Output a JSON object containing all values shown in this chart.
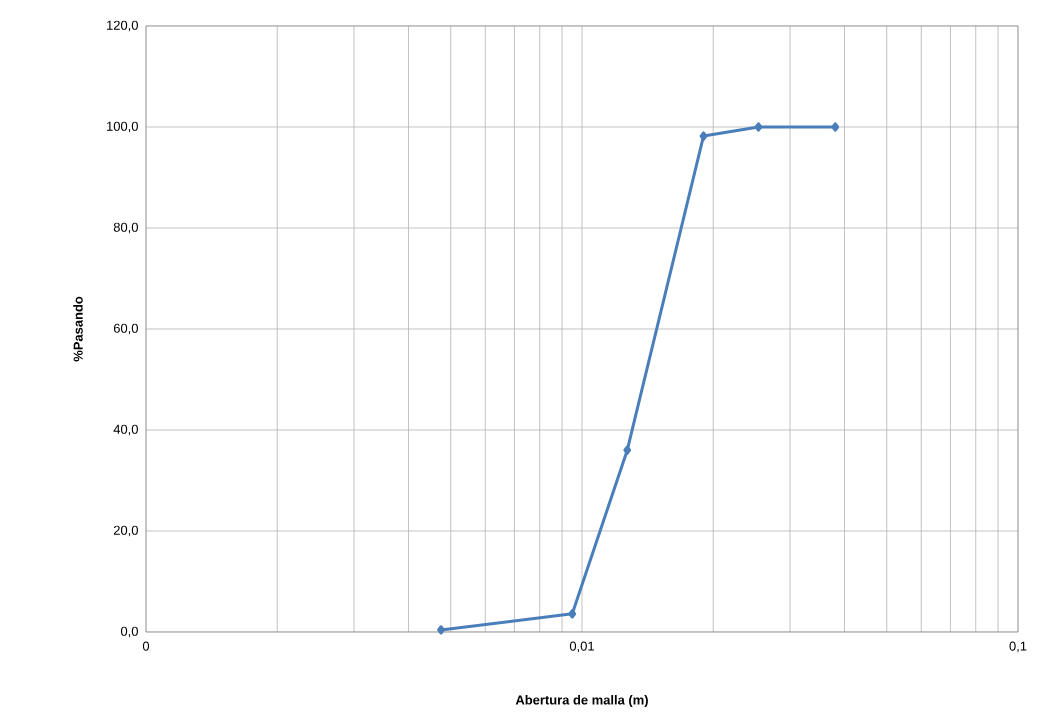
{
  "chart_data": {
    "type": "line",
    "xlabel": "Abertura de malla (m)",
    "ylabel": "%Pasando",
    "log": "x",
    "grid": true,
    "marker": "diamond",
    "line_style": "solid",
    "xlim": [
      0.001,
      0.1
    ],
    "ylim": [
      0,
      120
    ],
    "xticks": [
      {
        "value": 0.001,
        "label": "0"
      },
      {
        "value": 0.01,
        "label": "0,01"
      },
      {
        "value": 0.1,
        "label": "0,1"
      }
    ],
    "yticks": [
      {
        "value": 0,
        "label": "0,0"
      },
      {
        "value": 20,
        "label": "20,0"
      },
      {
        "value": 40,
        "label": "40,0"
      },
      {
        "value": 60,
        "label": "60,0"
      },
      {
        "value": 80,
        "label": "80,0"
      },
      {
        "value": 100,
        "label": "100,0"
      },
      {
        "value": 120,
        "label": "120,0"
      }
    ],
    "series": [
      {
        "color": "#4a7ebb",
        "x": [
          0.00475,
          0.0095,
          0.0127,
          0.019,
          0.0254,
          0.0381
        ],
        "values": [
          0.4,
          3.6,
          36.0,
          98.2,
          100.0,
          100.0
        ]
      }
    ]
  }
}
